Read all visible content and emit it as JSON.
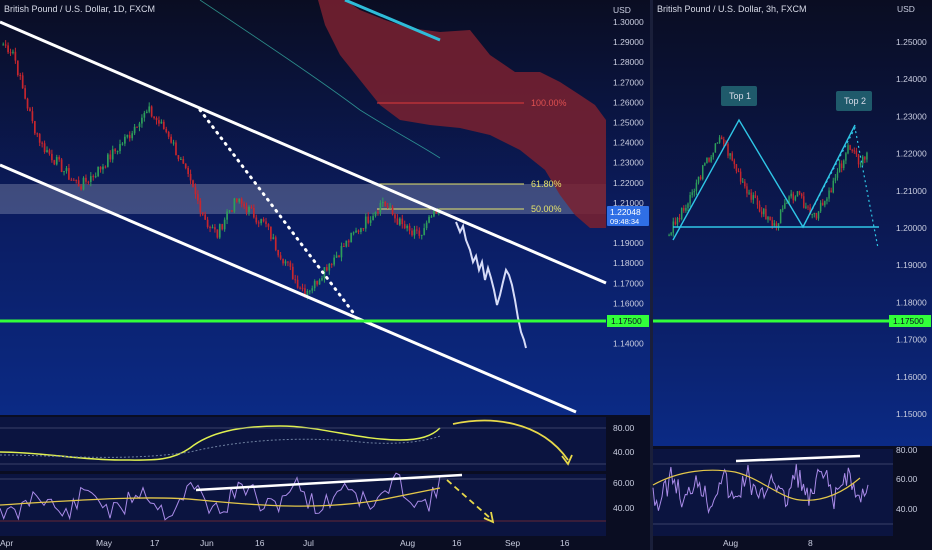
{
  "colors": {
    "background_top": "#0a0d22",
    "background_bottom": "#0b2a85",
    "bull": "#2e9e5b",
    "bear": "#c6262e",
    "channel": "#ffffff",
    "support": "#32ff3a",
    "fib": "#e6e36a",
    "fib_100": "#e03a3a",
    "cloud": "#7a2130",
    "cloud_line": "#2fbcd8",
    "projection": "#d7dcf8",
    "oscillator_line": "#e0f050",
    "rsi_line": "#a98be8",
    "rsi_ma": "#e3c74a",
    "arrow": "#e7d84a",
    "pattern": "#2fc6e6"
  },
  "left_chart": {
    "title": "British Pound / U.S. Dollar, 1D, FXCM",
    "axis_unit": "USD",
    "price_ticks": [
      "1.30000",
      "1.29000",
      "1.28000",
      "1.27000",
      "1.26000",
      "1.25000",
      "1.24000",
      "1.23000",
      "1.22000",
      "1.21000",
      "1.20000",
      "1.19000",
      "1.18000",
      "1.17000",
      "1.16000",
      "1.15000",
      "1.14000"
    ],
    "current_price": "1.22048",
    "countdown": "09:48:34",
    "support_label": "1.17500",
    "fib_levels": [
      {
        "label": "100.00%",
        "price": 1.266
      },
      {
        "label": "61.80%",
        "price": 1.231
      },
      {
        "label": "50.00%",
        "price": 1.225
      }
    ],
    "x_labels": [
      "Apr",
      "May",
      "17",
      "Jun",
      "16",
      "Jul",
      "Aug",
      "16",
      "Sep",
      "16"
    ],
    "lower_panel_1_ticks": [
      "80.00",
      "40.00"
    ],
    "lower_panel_2_ticks": [
      "60.00",
      "40.00"
    ]
  },
  "right_chart": {
    "title": "British Pound / U.S. Dollar, 3h, FXCM",
    "axis_unit": "USD",
    "price_ticks": [
      "1.25000",
      "1.24000",
      "1.23000",
      "1.22000",
      "1.21000",
      "1.20000",
      "1.19000",
      "1.18000",
      "1.17000",
      "1.16000",
      "1.15000"
    ],
    "support_label": "1.17500",
    "annotations": [
      "Top 1",
      "Top 2"
    ],
    "x_labels": [
      "Aug",
      "8"
    ],
    "rsi_ticks": [
      "80.00",
      "60.00",
      "40.00"
    ]
  },
  "chart_data": [
    {
      "type": "candlestick",
      "title": "British Pound / U.S. Dollar, 1D, FXCM",
      "ylim": [
        1.135,
        1.305
      ],
      "x": [
        "Apr",
        "May",
        "17",
        "Jun",
        "16",
        "Jul",
        "Aug",
        "16",
        "Sep",
        "16"
      ],
      "close_path": [
        1.295,
        1.292,
        1.275,
        1.26,
        1.25,
        1.245,
        1.24,
        1.235,
        1.232,
        1.236,
        1.24,
        1.245,
        1.25,
        1.255,
        1.262,
        1.265,
        1.26,
        1.255,
        1.245,
        1.235,
        1.225,
        1.215,
        1.21,
        1.22,
        1.225,
        1.222,
        1.218,
        1.214,
        1.205,
        1.198,
        1.19,
        1.185,
        1.188,
        1.195,
        1.2,
        1.205,
        1.21,
        1.215,
        1.22,
        1.225,
        1.219,
        1.214,
        1.21,
        1.21,
        1.218,
        1.22
      ],
      "support": 1.175,
      "current": 1.22048
    },
    {
      "type": "candlestick",
      "title": "British Pound / U.S. Dollar, 3h, FXCM",
      "ylim": [
        1.145,
        1.258
      ],
      "x": [
        "Aug",
        "8"
      ],
      "close_path": [
        1.2,
        1.205,
        1.21,
        1.218,
        1.224,
        1.229,
        1.222,
        1.216,
        1.21,
        1.206,
        1.202,
        1.208,
        1.212,
        1.208,
        1.206,
        1.21,
        1.218,
        1.226,
        1.222,
        1.224
      ],
      "support": 1.175,
      "pattern": "double top"
    }
  ]
}
